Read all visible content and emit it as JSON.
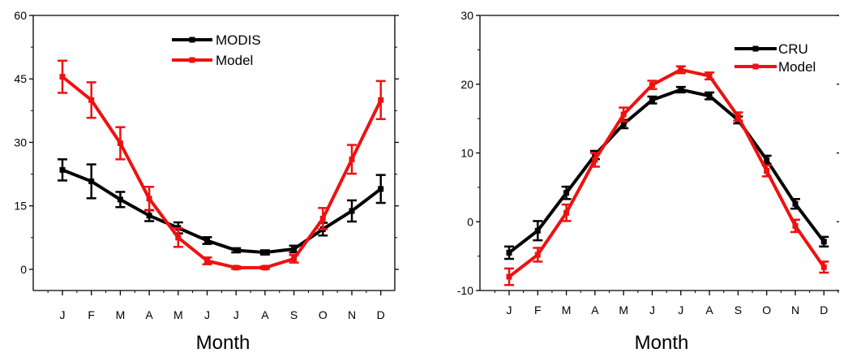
{
  "chart_data": [
    {
      "type": "line",
      "title": "",
      "xlabel": "Month",
      "ylabel": "",
      "categories": [
        "J",
        "F",
        "M",
        "A",
        "M",
        "J",
        "J",
        "A",
        "S",
        "O",
        "N",
        "D"
      ],
      "ylim": [
        -5,
        60
      ],
      "yticks": [
        0,
        15,
        30,
        45,
        60
      ],
      "yminor_ticks": [
        7.5,
        22.5,
        37.5,
        52.5
      ],
      "grid": false,
      "legend_position": "top-center",
      "series": [
        {
          "name": "MODIS",
          "color": "#000000",
          "values": [
            23.5,
            20.8,
            16.5,
            12.7,
            9.8,
            6.8,
            4.5,
            4.0,
            4.8,
            9.5,
            13.8,
            19.0
          ],
          "errors": [
            2.5,
            4.0,
            1.8,
            1.3,
            1.3,
            0.8,
            0.5,
            0.5,
            0.8,
            1.5,
            2.5,
            3.3
          ]
        },
        {
          "name": "Model",
          "color": "#ee1111",
          "values": [
            45.5,
            40.0,
            29.8,
            16.7,
            7.5,
            2.0,
            0.4,
            0.4,
            2.5,
            12.0,
            26.0,
            40.0
          ],
          "errors": [
            3.8,
            4.2,
            3.8,
            2.8,
            2.2,
            0.8,
            0.3,
            0.3,
            0.9,
            2.5,
            3.4,
            4.5
          ]
        }
      ]
    },
    {
      "type": "line",
      "title": "",
      "xlabel": "Month",
      "ylabel": "",
      "categories": [
        "J",
        "F",
        "M",
        "A",
        "M",
        "J",
        "J",
        "A",
        "S",
        "O",
        "N",
        "D"
      ],
      "ylim": [
        -10,
        30
      ],
      "yticks": [
        -10,
        0,
        10,
        20,
        30
      ],
      "yminor_ticks": [
        -5,
        5,
        15,
        25
      ],
      "grid": false,
      "legend_position": "top-right",
      "series": [
        {
          "name": "CRU",
          "color": "#000000",
          "values": [
            -4.5,
            -1.3,
            4.2,
            9.7,
            14.2,
            17.7,
            19.2,
            18.3,
            14.8,
            9.0,
            2.6,
            -2.9
          ],
          "errors": [
            0.9,
            1.4,
            0.9,
            0.6,
            0.6,
            0.5,
            0.4,
            0.5,
            0.5,
            0.6,
            0.7,
            0.7
          ]
        },
        {
          "name": "Model",
          "color": "#ee1111",
          "values": [
            -8.0,
            -4.8,
            1.3,
            9.0,
            15.6,
            19.9,
            22.1,
            21.2,
            15.3,
            7.4,
            -0.6,
            -6.6
          ],
          "errors": [
            1.2,
            1.0,
            1.2,
            1.0,
            1.0,
            0.6,
            0.5,
            0.5,
            0.6,
            0.8,
            0.9,
            0.8
          ]
        }
      ]
    }
  ]
}
